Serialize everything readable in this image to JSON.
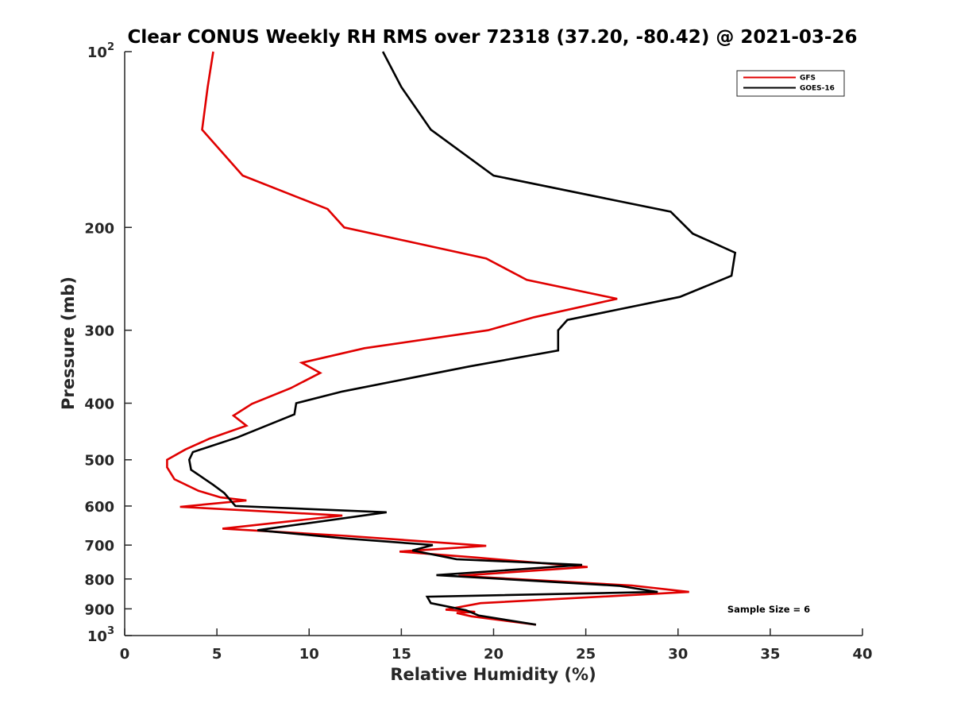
{
  "chart_data": {
    "type": "line",
    "title": "Clear CONUS Weekly RH RMS over 72318 (37.20, -80.42) @ 2021-03-26",
    "xlabel": "Relative Humidity (%)",
    "ylabel": "Pressure (mb)",
    "xlim": [
      0,
      40
    ],
    "ylim": [
      100,
      1000
    ],
    "y_scale": "log",
    "y_direction": "reversed",
    "x_ticks": [
      0,
      5,
      10,
      15,
      20,
      25,
      30,
      35,
      40
    ],
    "x_tick_labels": [
      "0",
      "5",
      "10",
      "15",
      "20",
      "25",
      "30",
      "35",
      "40"
    ],
    "y_ticks": [
      100,
      200,
      300,
      400,
      500,
      600,
      700,
      800,
      900,
      1000
    ],
    "y_tick_labels": [
      {
        "base": "10",
        "sup": "2"
      },
      {
        "base": "200",
        "sup": ""
      },
      {
        "base": "300",
        "sup": ""
      },
      {
        "base": "400",
        "sup": ""
      },
      {
        "base": "500",
        "sup": ""
      },
      {
        "base": "600",
        "sup": ""
      },
      {
        "base": "700",
        "sup": ""
      },
      {
        "base": "800",
        "sup": ""
      },
      {
        "base": "900",
        "sup": ""
      },
      {
        "base": "10",
        "sup": "3"
      }
    ],
    "grid": false,
    "legend_position": "top-right",
    "annotation": "Sample Size = 6",
    "series": [
      {
        "name": "GFS",
        "color": "#e00000",
        "points": [
          [
            4.8,
            100
          ],
          [
            4.5,
            115
          ],
          [
            4.2,
            136
          ],
          [
            6.4,
            163
          ],
          [
            11.0,
            186
          ],
          [
            11.9,
            200
          ],
          [
            19.6,
            226
          ],
          [
            21.8,
            246
          ],
          [
            26.7,
            265
          ],
          [
            22.2,
            285
          ],
          [
            19.7,
            300
          ],
          [
            13.0,
            322
          ],
          [
            9.6,
            341
          ],
          [
            10.6,
            355
          ],
          [
            9.0,
            377
          ],
          [
            6.9,
            401
          ],
          [
            5.9,
            420
          ],
          [
            6.6,
            437
          ],
          [
            4.6,
            460
          ],
          [
            3.3,
            480
          ],
          [
            2.3,
            500
          ],
          [
            2.3,
            515
          ],
          [
            2.7,
            540
          ],
          [
            4.0,
            565
          ],
          [
            5.2,
            580
          ],
          [
            6.6,
            587
          ],
          [
            3.0,
            602
          ],
          [
            11.8,
            623
          ],
          [
            5.3,
            656
          ],
          [
            12.0,
            675
          ],
          [
            19.6,
            702
          ],
          [
            14.9,
            718
          ],
          [
            19.0,
            735
          ],
          [
            25.1,
            763
          ],
          [
            18.1,
            790
          ],
          [
            27.5,
            821
          ],
          [
            30.6,
            842
          ],
          [
            19.3,
            880
          ],
          [
            17.4,
            903
          ],
          [
            19.0,
            911
          ],
          [
            18.0,
            915
          ],
          [
            18.8,
            927
          ],
          [
            22.3,
            958
          ]
        ]
      },
      {
        "name": "GOES-16",
        "color": "#000000",
        "points": [
          [
            14.0,
            100
          ],
          [
            15.0,
            115
          ],
          [
            16.6,
            136
          ],
          [
            20.0,
            163
          ],
          [
            29.6,
            188
          ],
          [
            30.8,
            205
          ],
          [
            33.1,
            221
          ],
          [
            32.9,
            242
          ],
          [
            30.1,
            263
          ],
          [
            24.0,
            288
          ],
          [
            23.5,
            300
          ],
          [
            23.5,
            325
          ],
          [
            18.7,
            346
          ],
          [
            11.8,
            382
          ],
          [
            9.3,
            400
          ],
          [
            9.2,
            418
          ],
          [
            6.1,
            458
          ],
          [
            3.7,
            485
          ],
          [
            3.5,
            500
          ],
          [
            3.6,
            520
          ],
          [
            4.8,
            552
          ],
          [
            5.4,
            570
          ],
          [
            6.0,
            600
          ],
          [
            14.2,
            615
          ],
          [
            7.2,
            660
          ],
          [
            11.8,
            681
          ],
          [
            16.7,
            700
          ],
          [
            15.6,
            715
          ],
          [
            18.0,
            740
          ],
          [
            24.8,
            757
          ],
          [
            16.9,
            788
          ],
          [
            26.8,
            822
          ],
          [
            28.9,
            842
          ],
          [
            16.4,
            858
          ],
          [
            16.6,
            880
          ],
          [
            18.5,
            905
          ],
          [
            19.2,
            924
          ],
          [
            22.3,
            958
          ]
        ]
      }
    ]
  }
}
